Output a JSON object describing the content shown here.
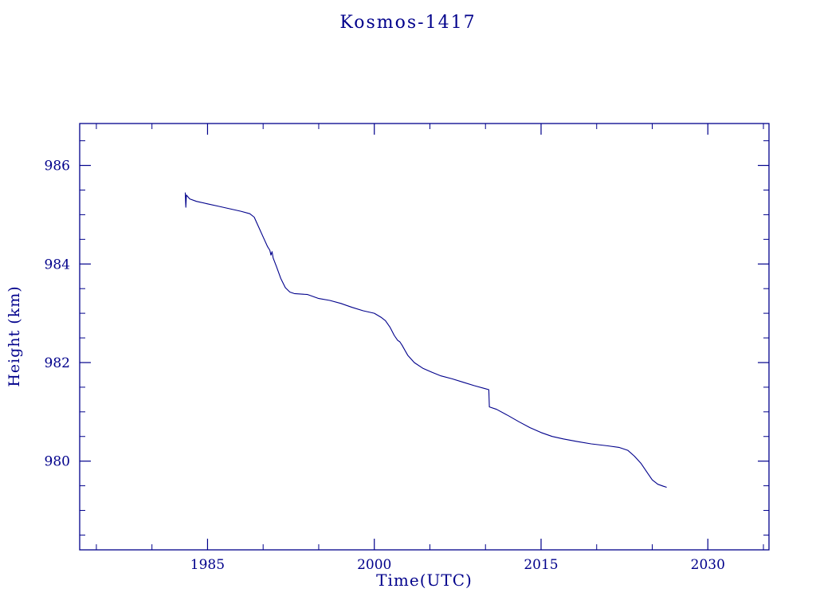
{
  "colors": {
    "accent": "#00008b",
    "background": "#ffffff"
  },
  "chart_data": {
    "type": "line",
    "title": "Kosmos-1417",
    "xlabel": "Time(UTC)",
    "ylabel": "Height (km)",
    "xlim": [
      1973.5,
      2035.5
    ],
    "ylim": [
      978.2,
      986.85
    ],
    "x_major_ticks": [
      1985,
      2000,
      2015,
      2030
    ],
    "x_minor_step": 5,
    "y_major_ticks": [
      980,
      982,
      984,
      986
    ],
    "y_minor_step": 0.5,
    "grid": false,
    "legend": "none",
    "line_color": "#00008b",
    "series": [
      {
        "name": "height",
        "points": [
          [
            1983.0,
            985.45
          ],
          [
            1983.05,
            985.15
          ],
          [
            1983.1,
            985.4
          ],
          [
            1983.4,
            985.32
          ],
          [
            1984.0,
            985.27
          ],
          [
            1985.0,
            985.22
          ],
          [
            1986.0,
            985.17
          ],
          [
            1987.0,
            985.12
          ],
          [
            1988.0,
            985.07
          ],
          [
            1988.8,
            985.02
          ],
          [
            1989.2,
            984.95
          ],
          [
            1989.6,
            984.75
          ],
          [
            1990.0,
            984.55
          ],
          [
            1990.4,
            984.35
          ],
          [
            1990.6,
            984.28
          ],
          [
            1990.7,
            984.18
          ],
          [
            1990.8,
            984.25
          ],
          [
            1990.9,
            984.12
          ],
          [
            1991.2,
            983.95
          ],
          [
            1991.6,
            983.7
          ],
          [
            1992.0,
            983.52
          ],
          [
            1992.4,
            983.43
          ],
          [
            1992.8,
            983.4
          ],
          [
            1994.0,
            983.38
          ],
          [
            1995.0,
            983.3
          ],
          [
            1996.0,
            983.26
          ],
          [
            1997.0,
            983.2
          ],
          [
            1998.0,
            983.12
          ],
          [
            1999.0,
            983.05
          ],
          [
            2000.0,
            983.0
          ],
          [
            2000.6,
            982.92
          ],
          [
            2001.0,
            982.85
          ],
          [
            2001.4,
            982.72
          ],
          [
            2001.8,
            982.55
          ],
          [
            2002.1,
            982.45
          ],
          [
            2002.3,
            982.42
          ],
          [
            2002.5,
            982.35
          ],
          [
            2003.0,
            982.15
          ],
          [
            2003.6,
            982.0
          ],
          [
            2004.4,
            981.88
          ],
          [
            2005.2,
            981.8
          ],
          [
            2006.0,
            981.73
          ],
          [
            2007.0,
            981.67
          ],
          [
            2008.0,
            981.6
          ],
          [
            2009.0,
            981.53
          ],
          [
            2010.0,
            981.47
          ],
          [
            2010.3,
            981.45
          ],
          [
            2010.35,
            981.1
          ],
          [
            2011.0,
            981.05
          ],
          [
            2012.0,
            980.93
          ],
          [
            2013.0,
            980.8
          ],
          [
            2014.0,
            980.68
          ],
          [
            2015.0,
            980.58
          ],
          [
            2016.0,
            980.5
          ],
          [
            2017.0,
            980.45
          ],
          [
            2018.2,
            980.4
          ],
          [
            2019.5,
            980.35
          ],
          [
            2021.0,
            980.31
          ],
          [
            2022.0,
            980.28
          ],
          [
            2022.8,
            980.22
          ],
          [
            2023.4,
            980.1
          ],
          [
            2024.0,
            979.95
          ],
          [
            2024.6,
            979.75
          ],
          [
            2025.0,
            979.62
          ],
          [
            2025.5,
            979.53
          ],
          [
            2026.0,
            979.49
          ],
          [
            2026.3,
            979.47
          ]
        ]
      }
    ]
  }
}
